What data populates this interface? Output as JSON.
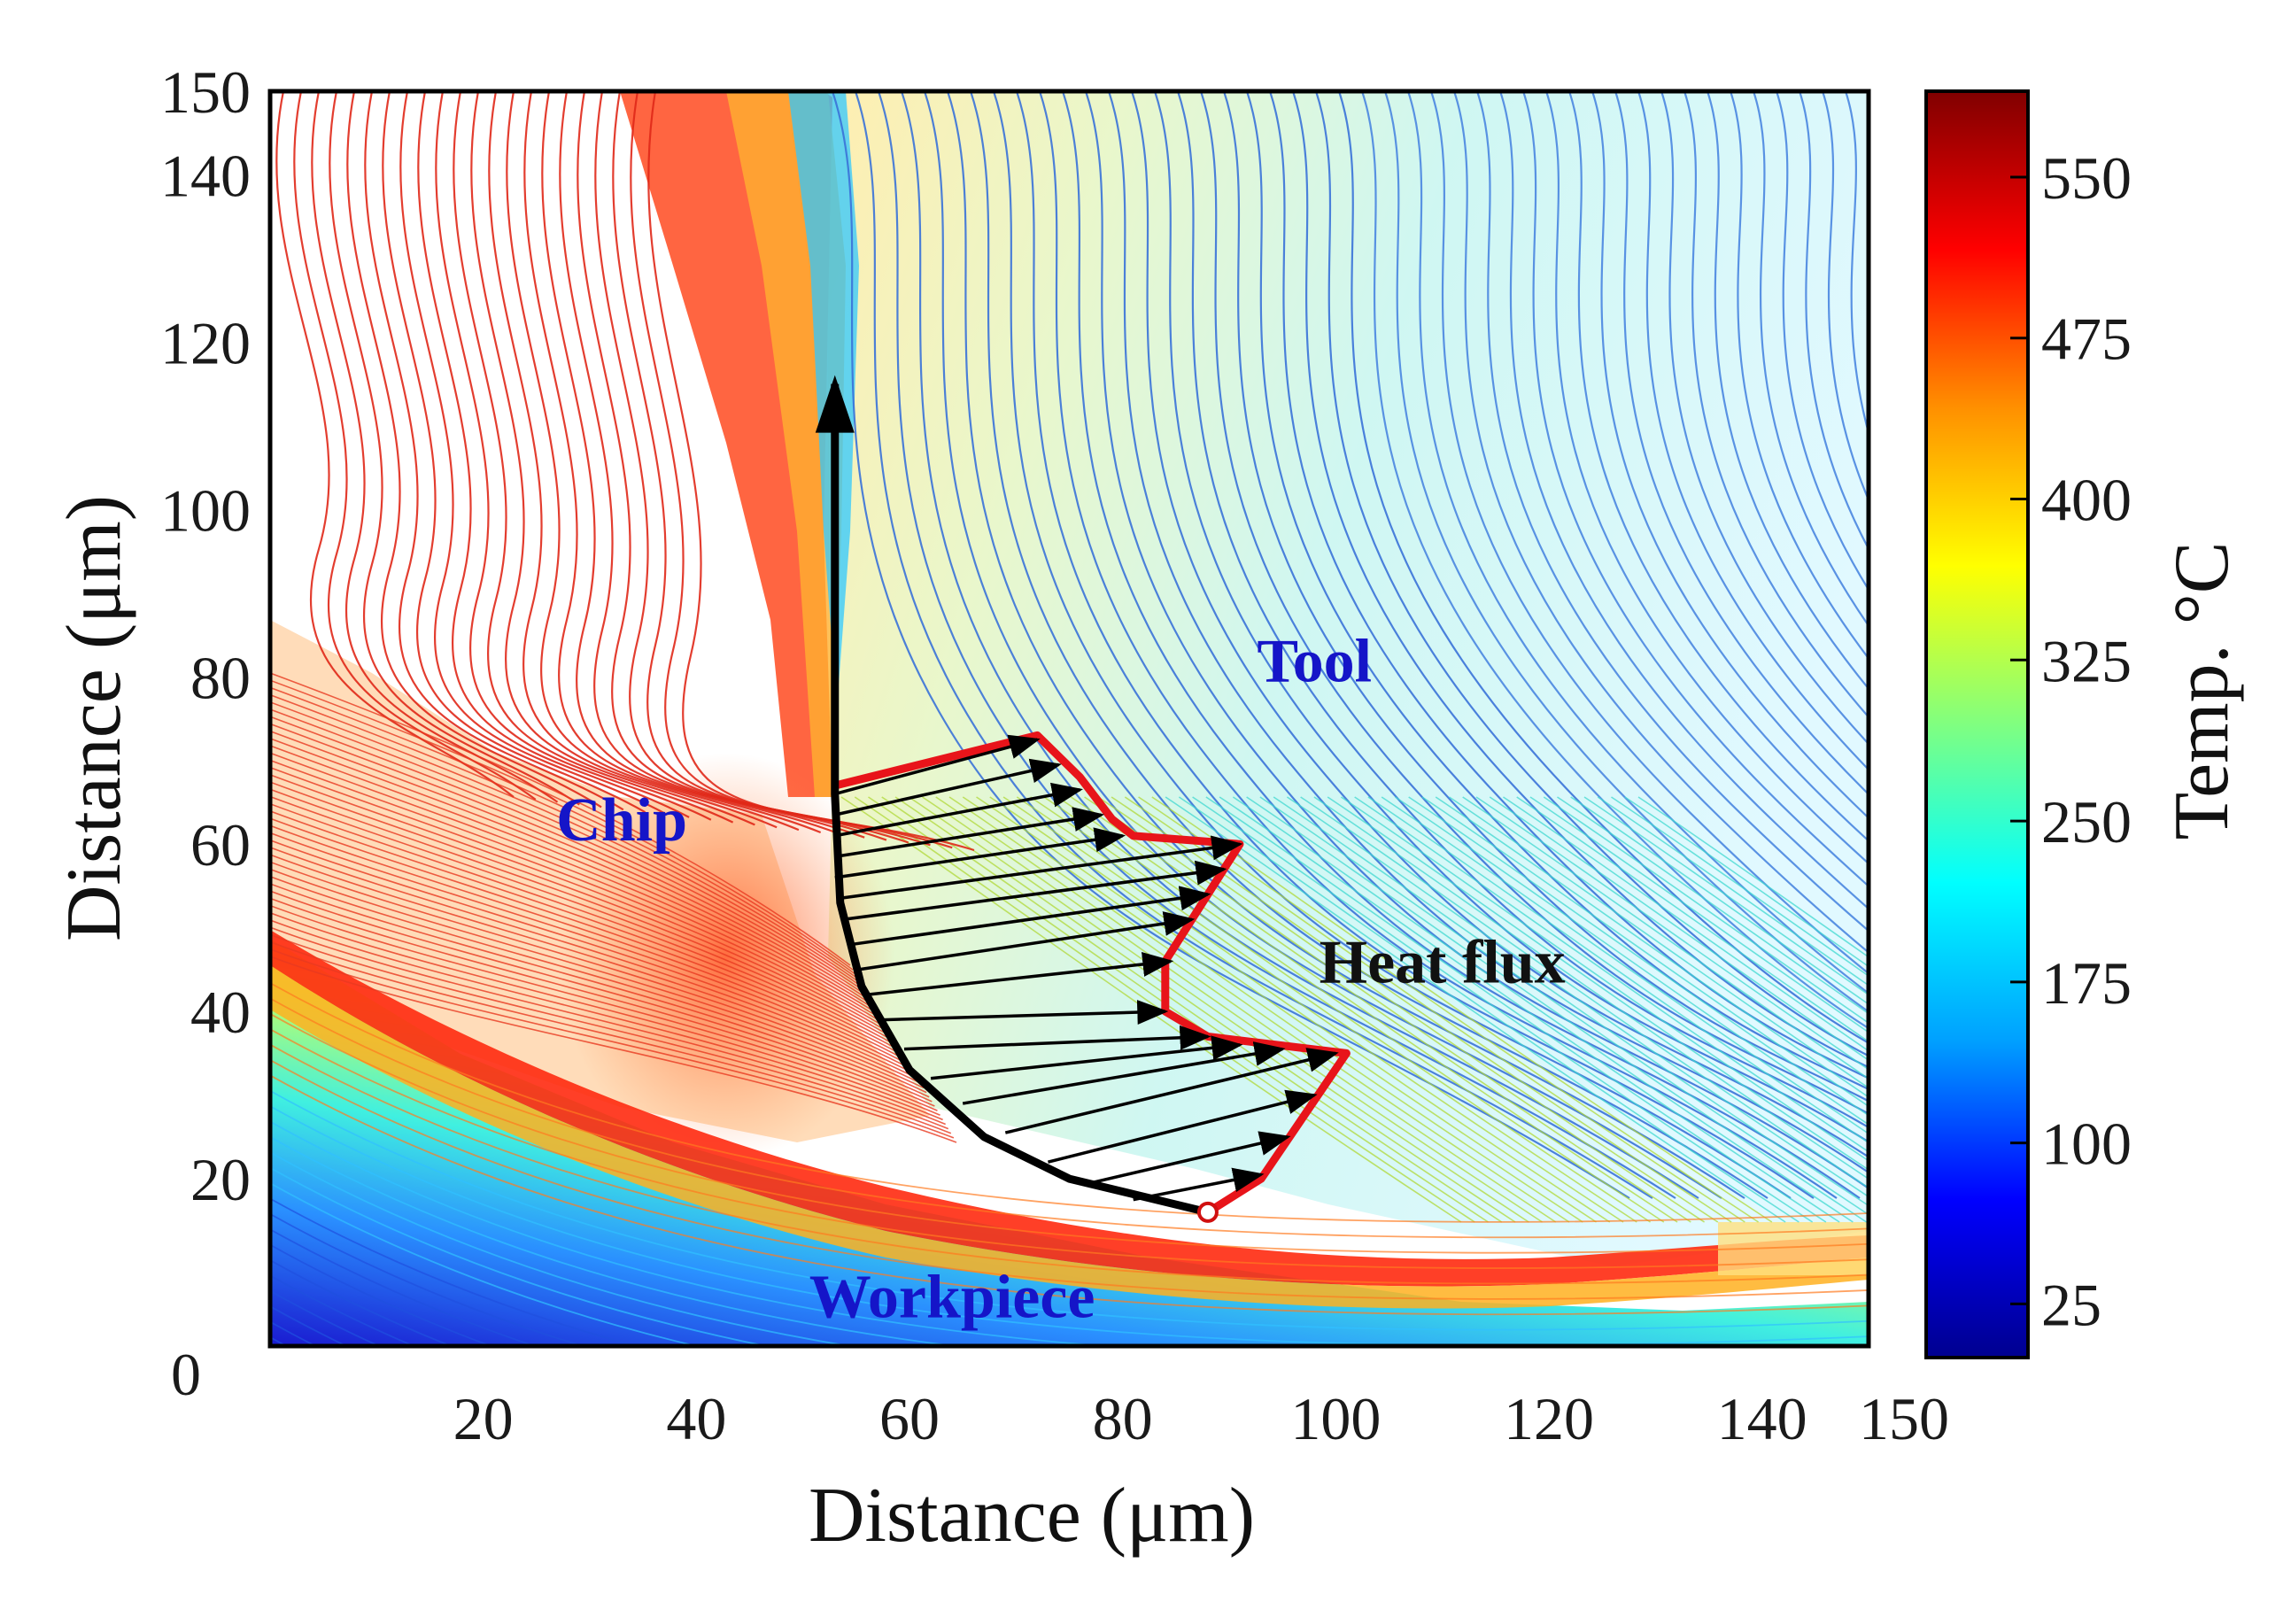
{
  "chart_data": {
    "type": "heatmap",
    "title": "",
    "xlabel": "Distance (μm)",
    "ylabel": "Distance (μm)",
    "xlim": [
      0,
      150
    ],
    "ylim": [
      0,
      150
    ],
    "x_ticks": [
      "0",
      "20",
      "40",
      "60",
      "80",
      "100",
      "120",
      "140",
      "150"
    ],
    "x_tick_values": [
      0,
      20,
      40,
      60,
      80,
      100,
      120,
      140,
      150
    ],
    "y_ticks": [
      "0",
      "20",
      "40",
      "60",
      "80",
      "100",
      "120",
      "140",
      "150"
    ],
    "y_tick_values": [
      0,
      20,
      40,
      60,
      80,
      100,
      120,
      140,
      150
    ],
    "colorbar": {
      "label": "Temp. °C",
      "range": [
        0,
        590
      ],
      "ticks": [
        "25",
        "100",
        "175",
        "250",
        "325",
        "400",
        "475",
        "550"
      ],
      "tick_values": [
        25,
        100,
        175,
        250,
        325,
        400,
        475,
        550
      ],
      "colors": [
        "#00008f",
        "#0000ff",
        "#00a0ff",
        "#00ffff",
        "#80ff80",
        "#ffff00",
        "#ff9000",
        "#ff0000",
        "#800000"
      ]
    },
    "annotations": [
      {
        "name": "tool",
        "text": "Tool",
        "x": 98,
        "y": 82,
        "color": "#1515c8"
      },
      {
        "name": "chip",
        "text": "Chip",
        "x": 33,
        "y": 63,
        "color": "#1515c8"
      },
      {
        "name": "workpiece",
        "text": "Workpiece",
        "x": 64,
        "y": 6,
        "color": "#1515c8"
      },
      {
        "name": "heat-flux",
        "text": "Heat flux",
        "x": 110,
        "y": 46,
        "color": "#111111"
      }
    ],
    "tool_rake_face": [
      [
        53,
        115
      ],
      [
        53,
        66
      ],
      [
        53.5,
        53
      ],
      [
        55.5,
        43
      ],
      [
        60,
        33
      ],
      [
        67,
        25
      ],
      [
        75,
        20
      ],
      [
        88,
        16
      ]
    ],
    "heat_flux_envelope": [
      [
        53,
        67
      ],
      [
        72,
        73
      ],
      [
        76,
        68
      ],
      [
        79,
        63
      ],
      [
        81,
        61
      ],
      [
        91,
        60
      ],
      [
        84,
        46
      ],
      [
        84,
        40
      ],
      [
        88,
        37
      ],
      [
        101,
        35
      ],
      [
        93,
        20
      ],
      [
        88,
        16
      ]
    ],
    "heat_flux_arrows": [
      {
        "from": [
          53,
          66
        ],
        "to": [
          72,
          72.5
        ]
      },
      {
        "from": [
          53,
          63.5
        ],
        "to": [
          74,
          69.5
        ]
      },
      {
        "from": [
          53,
          61
        ],
        "to": [
          76,
          66.5
        ]
      },
      {
        "from": [
          53,
          58.5
        ],
        "to": [
          78,
          63.5
        ]
      },
      {
        "from": [
          53,
          56
        ],
        "to": [
          80,
          61
        ]
      },
      {
        "from": [
          53.3,
          53.5
        ],
        "to": [
          91,
          60
        ]
      },
      {
        "from": [
          53.8,
          51
        ],
        "to": [
          89.5,
          57
        ]
      },
      {
        "from": [
          54.5,
          48
        ],
        "to": [
          88,
          54
        ]
      },
      {
        "from": [
          55.2,
          45
        ],
        "to": [
          86.5,
          51
        ]
      },
      {
        "from": [
          56,
          42
        ],
        "to": [
          84.5,
          46
        ]
      },
      {
        "from": [
          57.5,
          39
        ],
        "to": [
          84,
          40
        ]
      },
      {
        "from": [
          59.5,
          35.5
        ],
        "to": [
          88,
          37
        ]
      },
      {
        "from": [
          62,
          32
        ],
        "to": [
          91,
          36
        ]
      },
      {
        "from": [
          65,
          29
        ],
        "to": [
          95,
          35.5
        ]
      },
      {
        "from": [
          69,
          25.5
        ],
        "to": [
          100,
          35
        ]
      },
      {
        "from": [
          73,
          22
        ],
        "to": [
          98,
          30
        ]
      },
      {
        "from": [
          77,
          19.5
        ],
        "to": [
          95.5,
          25
        ]
      },
      {
        "from": [
          81,
          17.5
        ],
        "to": [
          93,
          20.5
        ]
      }
    ]
  }
}
